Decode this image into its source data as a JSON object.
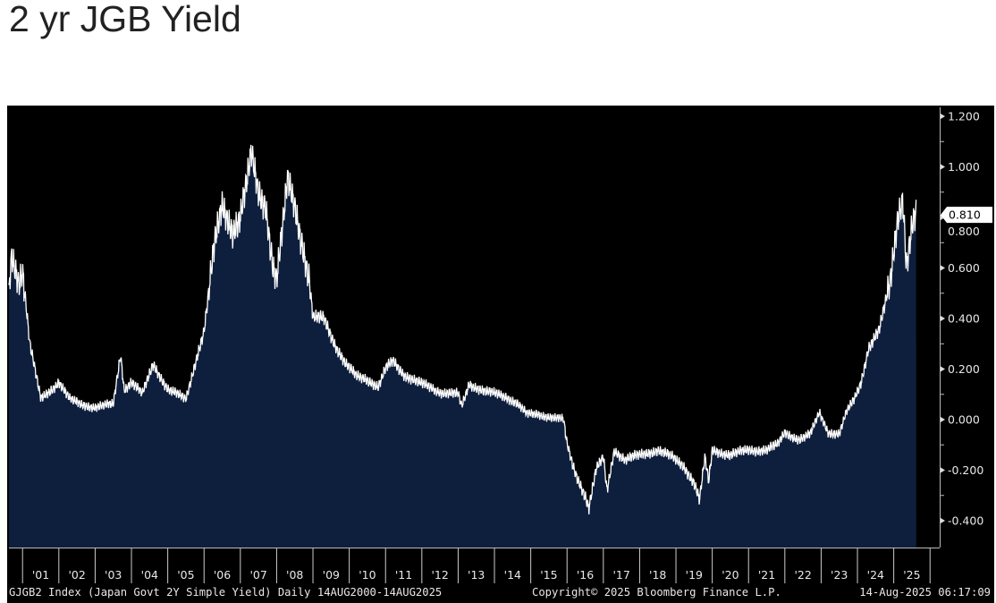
{
  "title": "2 yr JGB Yield",
  "chart_data": {
    "type": "area",
    "title": "2 yr JGB Yield",
    "series_name": "GJGB2 Index (Japan Govt 2Y Simple Yield)",
    "ylim": [
      -0.5,
      1.25
    ],
    "yticks": [
      -0.4,
      -0.2,
      0.0,
      0.2,
      0.4,
      0.6,
      0.8,
      1.0,
      1.2
    ],
    "ytick_labels": [
      "-0.400",
      "-0.200",
      "0.000",
      "0.200",
      "0.400",
      "0.600",
      "0.800",
      "1.000",
      "1.200"
    ],
    "last_value_label": "0.810",
    "last_value": 0.81,
    "xlim": [
      2000.62,
      2025.62
    ],
    "xtick_labels": [
      "'01",
      "'02",
      "'03",
      "'04",
      "'05",
      "'06",
      "'07",
      "'08",
      "'09",
      "'10",
      "'11",
      "'12",
      "'13",
      "'14",
      "'15",
      "'16",
      "'17",
      "'18",
      "'19",
      "'20",
      "'21",
      "'22",
      "'23",
      "'24",
      "'25"
    ],
    "x": [
      2000.62,
      2000.7,
      2000.9,
      2001.0,
      2001.2,
      2001.5,
      2001.8,
      2002.0,
      2002.3,
      2002.6,
      2003.0,
      2003.5,
      2003.7,
      2003.8,
      2004.0,
      2004.3,
      2004.6,
      2005.0,
      2005.5,
      2005.8,
      2006.0,
      2006.3,
      2006.5,
      2006.8,
      2007.0,
      2007.2,
      2007.3,
      2007.5,
      2007.7,
      2007.9,
      2008.0,
      2008.2,
      2008.3,
      2008.5,
      2008.7,
      2008.9,
      2009.0,
      2009.3,
      2009.6,
      2009.9,
      2010.2,
      2010.5,
      2010.8,
      2011.0,
      2011.2,
      2011.5,
      2012.0,
      2012.5,
      2013.0,
      2013.1,
      2013.3,
      2013.8,
      2014.3,
      2014.6,
      2014.9,
      2015.2,
      2015.6,
      2015.9,
      2016.0,
      2016.2,
      2016.5,
      2016.6,
      2016.8,
      2017.0,
      2017.1,
      2017.3,
      2017.6,
      2018.0,
      2018.5,
      2018.9,
      2019.2,
      2019.5,
      2019.65,
      2019.8,
      2019.9,
      2020.0,
      2020.5,
      2021.0,
      2021.5,
      2021.8,
      2022.0,
      2022.4,
      2022.7,
      2022.95,
      2023.2,
      2023.5,
      2023.7,
      2023.9,
      2024.1,
      2024.3,
      2024.6,
      2024.9,
      2025.1,
      2025.25,
      2025.35,
      2025.5,
      2025.62
    ],
    "values": [
      0.5,
      0.65,
      0.55,
      0.6,
      0.3,
      0.08,
      0.12,
      0.15,
      0.08,
      0.06,
      0.05,
      0.06,
      0.26,
      0.12,
      0.15,
      0.1,
      0.22,
      0.12,
      0.08,
      0.25,
      0.35,
      0.7,
      0.85,
      0.75,
      0.8,
      0.95,
      1.05,
      0.9,
      0.85,
      0.6,
      0.55,
      0.8,
      0.95,
      0.85,
      0.7,
      0.55,
      0.4,
      0.4,
      0.3,
      0.22,
      0.17,
      0.16,
      0.13,
      0.2,
      0.23,
      0.18,
      0.14,
      0.11,
      0.1,
      0.05,
      0.14,
      0.11,
      0.09,
      0.07,
      0.02,
      0.02,
      0.01,
      0.0,
      -0.1,
      -0.2,
      -0.3,
      -0.35,
      -0.2,
      -0.15,
      -0.28,
      -0.12,
      -0.16,
      -0.14,
      -0.12,
      -0.15,
      -0.18,
      -0.25,
      -0.32,
      -0.15,
      -0.25,
      -0.12,
      -0.14,
      -0.12,
      -0.12,
      -0.1,
      -0.05,
      -0.08,
      -0.06,
      0.03,
      -0.05,
      -0.06,
      0.03,
      0.08,
      0.15,
      0.28,
      0.35,
      0.55,
      0.8,
      0.88,
      0.6,
      0.75,
      0.81
    ],
    "colors": {
      "background": "#000000",
      "fill": "#0e1f3d",
      "line": "#ffffff",
      "text": "#e8e8e8"
    }
  },
  "footer": {
    "left": "GJGB2 Index (Japan Govt 2Y Simple Yield)  Daily 14AUG2000-14AUG2025",
    "center": "Copyright© 2025 Bloomberg Finance L.P.",
    "right": "14-Aug-2025 06:17:09"
  }
}
